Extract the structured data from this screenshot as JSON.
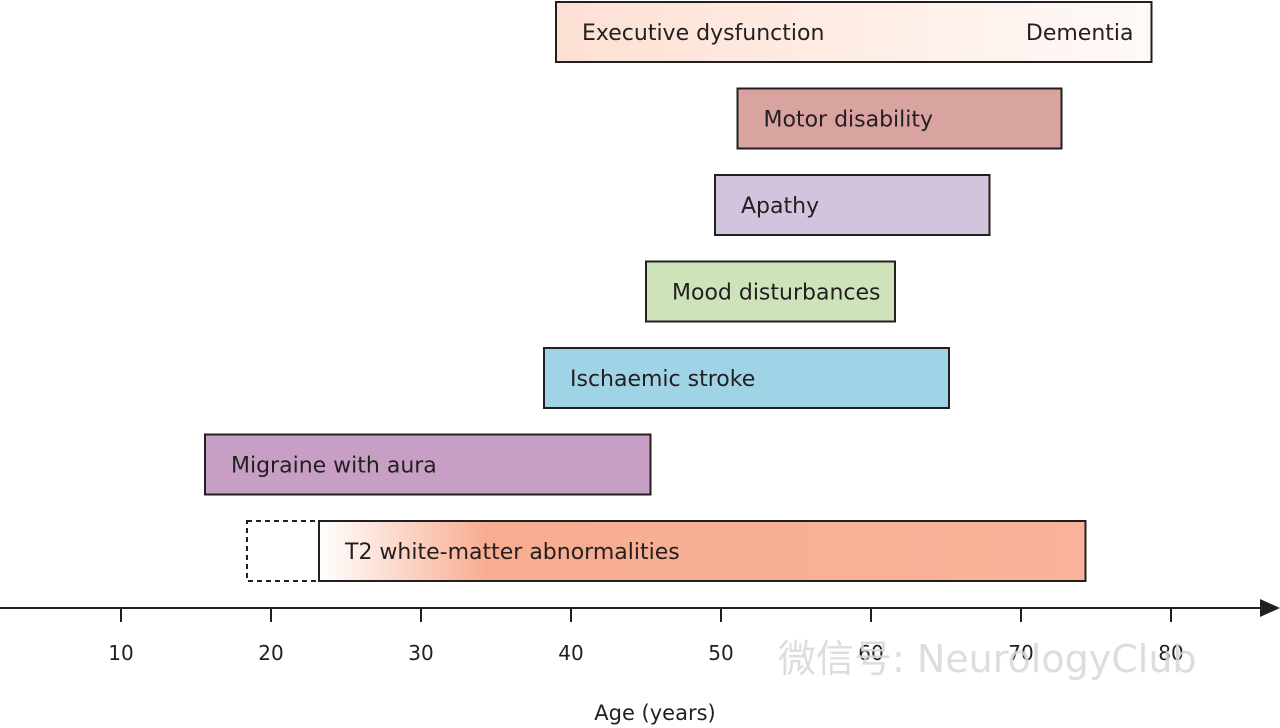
{
  "chart_data": {
    "type": "bar",
    "orientation": "horizontal-range",
    "xlabel": "Age (years)",
    "xticks": [
      10,
      20,
      30,
      40,
      50,
      60,
      70,
      80
    ],
    "xlim": [
      10,
      80
    ],
    "bars": [
      {
        "label": "Executive dysfunction",
        "end_label": "Dementia",
        "start": 39,
        "end": 78.7,
        "color": "#fde3d8",
        "gradient": true
      },
      {
        "label": "Motor disability",
        "start": 51.1,
        "end": 72.7,
        "color": "#d9a3a0"
      },
      {
        "label": "Apathy",
        "start": 49.6,
        "end": 67.9,
        "color": "#d3c4de"
      },
      {
        "label": "Mood disturbances",
        "start": 45,
        "end": 61.6,
        "color": "#cee3b9"
      },
      {
        "label": "Ischaemic stroke",
        "start": 38.2,
        "end": 65.2,
        "color": "#9fd3e6"
      },
      {
        "label": "Migraine with aura",
        "start": 15.6,
        "end": 45.3,
        "color": "#c79fc4"
      },
      {
        "label": "T2 white-matter abnormalities",
        "start": 23.2,
        "end": 74.3,
        "color": "#f8b39a",
        "gradient": true,
        "dashed_start": 18.4,
        "dashed_end": 23.2
      }
    ]
  },
  "watermark": "微信号: NeurologyClub"
}
